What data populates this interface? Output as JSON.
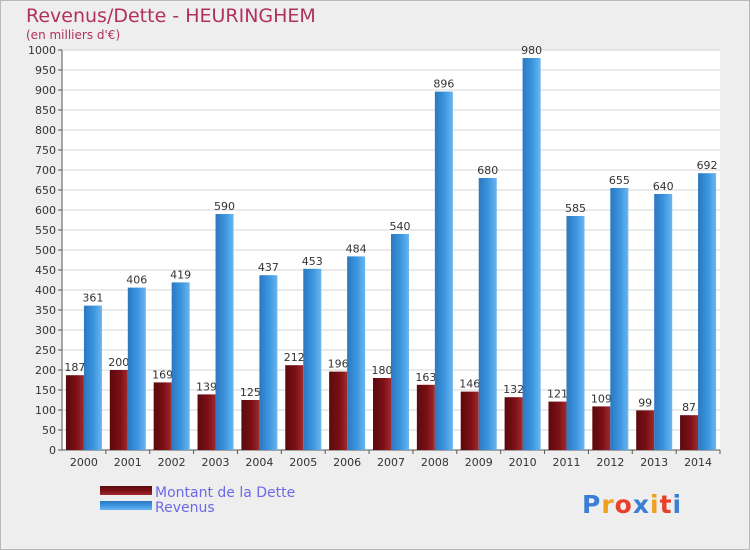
{
  "title": "Revenus/Dette - HEURINGHEM",
  "subtitle": "(en milliers d'€)",
  "colors": {
    "dette": "#7a0f14",
    "revenus": "#3d96e0",
    "title": "#b03060",
    "legend_text": "#6a6ae8",
    "background": "#eeeeee"
  },
  "logo": {
    "text": "Proxiti",
    "letter_colors": [
      "#3a7fd5",
      "#f0a020",
      "#e8402a",
      "#3a7fd5",
      "#f0a020",
      "#e8402a",
      "#3a7fd5"
    ]
  },
  "chart_data": {
    "type": "bar",
    "categories": [
      "2000",
      "2001",
      "2002",
      "2003",
      "2004",
      "2005",
      "2006",
      "2007",
      "2008",
      "2009",
      "2010",
      "2011",
      "2012",
      "2013",
      "2014"
    ],
    "series": [
      {
        "name": "Montant de la Dette",
        "values": [
          187,
          200,
          169,
          139,
          125,
          212,
          196,
          180,
          163,
          146,
          132,
          121,
          109,
          99,
          87
        ]
      },
      {
        "name": "Revenus",
        "values": [
          361,
          406,
          419,
          590,
          437,
          453,
          484,
          540,
          896,
          680,
          980,
          585,
          655,
          640,
          692
        ]
      }
    ],
    "ylim": [
      0,
      1000
    ],
    "ytick_step": 50,
    "grid": true,
    "data_labels": true,
    "legend_position": "bottom-left"
  }
}
